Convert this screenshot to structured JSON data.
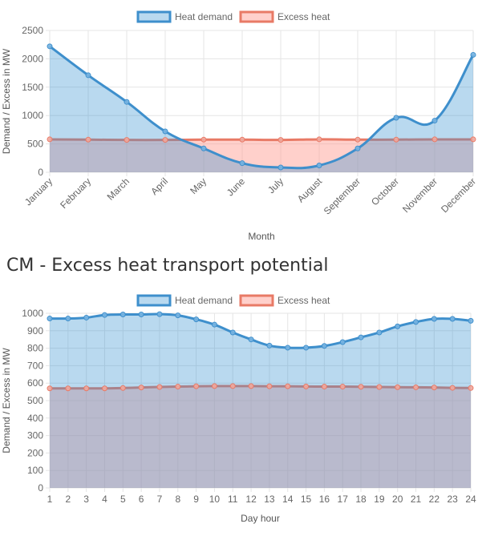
{
  "section_title": "CM - Excess heat transport potential",
  "colors": {
    "demand_line": "#3e8fcc",
    "demand_fill": "rgba(54,145,210,0.35)",
    "excess_line": "#e87a66",
    "excess_fill": "rgba(255,150,140,0.45)",
    "grid": "#e5e5e5"
  },
  "chart_data": [
    {
      "type": "area",
      "xlabel": "Month",
      "ylabel": "Demand / Excess in MW",
      "ylim": [
        0,
        2500
      ],
      "ytick_step": 500,
      "x_tick_rotation": "-45deg",
      "legend_placement": "top-center",
      "categories": [
        "January",
        "February",
        "March",
        "April",
        "May",
        "June",
        "July",
        "August",
        "September",
        "October",
        "November",
        "December"
      ],
      "series": [
        {
          "name": "Heat demand",
          "values": [
            2220,
            1710,
            1240,
            720,
            420,
            160,
            85,
            120,
            420,
            960,
            910,
            2070
          ]
        },
        {
          "name": "Excess heat",
          "values": [
            580,
            575,
            570,
            570,
            575,
            575,
            570,
            580,
            575,
            575,
            580,
            580
          ]
        }
      ]
    },
    {
      "type": "area",
      "xlabel": "Day hour",
      "ylabel": "Demand / Excess in MW",
      "ylim": [
        0,
        1000
      ],
      "ytick_step": 100,
      "legend_placement": "top-center",
      "categories": [
        "1",
        "2",
        "3",
        "4",
        "5",
        "6",
        "7",
        "8",
        "9",
        "10",
        "11",
        "12",
        "13",
        "14",
        "15",
        "16",
        "17",
        "18",
        "19",
        "20",
        "21",
        "22",
        "23",
        "24"
      ],
      "series": [
        {
          "name": "Heat demand",
          "values": [
            970,
            970,
            975,
            990,
            993,
            993,
            995,
            988,
            965,
            935,
            890,
            850,
            815,
            803,
            803,
            813,
            835,
            862,
            890,
            925,
            950,
            968,
            968,
            957
          ]
        },
        {
          "name": "Excess heat",
          "values": [
            570,
            570,
            570,
            570,
            572,
            575,
            578,
            580,
            582,
            583,
            583,
            583,
            582,
            582,
            581,
            580,
            580,
            579,
            578,
            577,
            576,
            575,
            573,
            572
          ]
        }
      ]
    }
  ]
}
